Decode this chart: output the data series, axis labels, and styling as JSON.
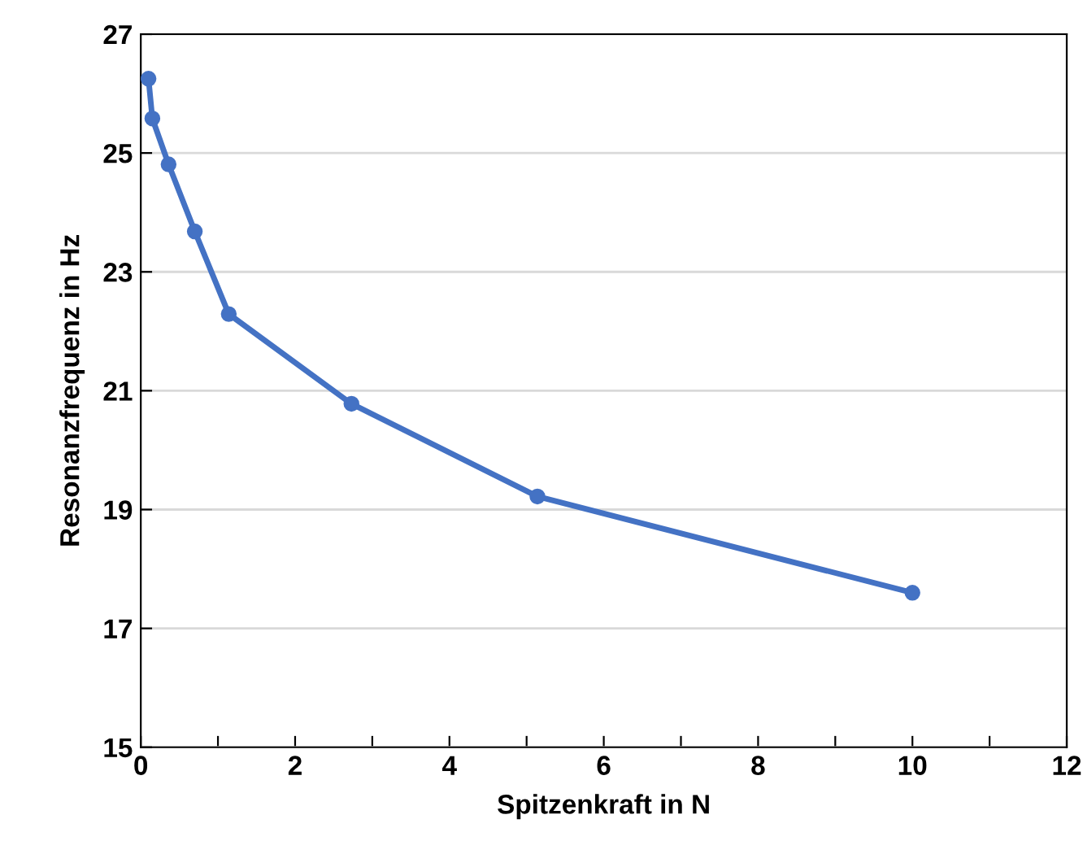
{
  "chart_data": {
    "type": "line",
    "xlabel": "Spitzenkraft in N",
    "ylabel": "Resonanzfrequenz in Hz",
    "x": [
      0.1,
      0.15,
      0.36,
      0.7,
      1.14,
      2.73,
      5.14,
      10
    ],
    "series": [
      {
        "color": "#4472c4",
        "values": [
          26.25,
          25.58,
          24.81,
          23.68,
          22.29,
          20.78,
          19.22,
          17.6
        ]
      }
    ],
    "xlim": [
      0,
      12
    ],
    "ylim": [
      15,
      27
    ],
    "xticks": [
      0,
      {
        "value": 1,
        "label": null
      },
      2,
      {
        "value": 3,
        "label": null
      },
      4,
      {
        "value": 5,
        "label": null
      },
      6,
      {
        "value": 7,
        "label": null
      },
      8,
      {
        "value": 9,
        "label": null
      },
      10,
      {
        "value": 11,
        "label": null
      },
      12
    ],
    "yticks": [
      15,
      17,
      19,
      21,
      23,
      25,
      27
    ],
    "grid": "y",
    "marker": "circle",
    "line_style": "solid",
    "legend": false
  }
}
